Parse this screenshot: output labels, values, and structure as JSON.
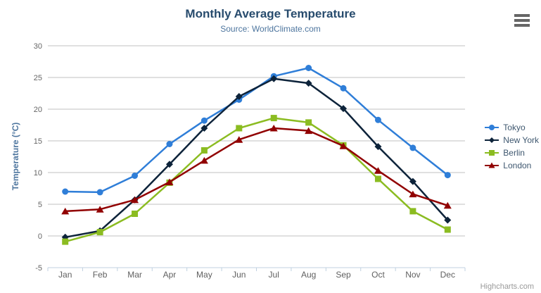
{
  "header": {
    "title": "Monthly Average Temperature",
    "subtitle": "Source: WorldClimate.com"
  },
  "credits": {
    "label": "Highcharts.com"
  },
  "context_menu_icon": "hamburger",
  "chart_data": {
    "type": "line",
    "title": "Monthly Average Temperature",
    "subtitle": "Source: WorldClimate.com",
    "categories": [
      "Jan",
      "Feb",
      "Mar",
      "Apr",
      "May",
      "Jun",
      "Jul",
      "Aug",
      "Sep",
      "Oct",
      "Nov",
      "Dec"
    ],
    "series": [
      {
        "name": "Tokyo",
        "color": "#2f7ed8",
        "marker": "circle",
        "values": [
          7.0,
          6.9,
          9.5,
          14.5,
          18.2,
          21.5,
          25.2,
          26.5,
          23.3,
          18.3,
          13.9,
          9.6
        ]
      },
      {
        "name": "New York",
        "color": "#0d233a",
        "marker": "diamond",
        "values": [
          -0.2,
          0.8,
          5.7,
          11.3,
          17.0,
          22.0,
          24.8,
          24.1,
          20.1,
          14.1,
          8.6,
          2.5
        ]
      },
      {
        "name": "Berlin",
        "color": "#8bbc21",
        "marker": "square",
        "values": [
          -0.9,
          0.6,
          3.5,
          8.4,
          13.5,
          17.0,
          18.6,
          17.9,
          14.3,
          9.0,
          3.9,
          1.0
        ]
      },
      {
        "name": "London",
        "color": "#910000",
        "marker": "triangle",
        "values": [
          3.9,
          4.2,
          5.7,
          8.5,
          11.9,
          15.2,
          17.0,
          16.6,
          14.2,
          10.3,
          6.6,
          4.8
        ]
      }
    ],
    "xlabel": "",
    "ylabel": "Temperature (°C)",
    "ylim": [
      -5,
      30
    ],
    "ytick_step": 5,
    "grid": true,
    "legend_position": "right",
    "colors": {
      "gridline": "#C0C0C0",
      "axis_line": "#C0D0E0",
      "tick_label": "#666666",
      "title": "#274b6d",
      "subtitle": "#4d759e",
      "legend_text": "#3E576F"
    }
  }
}
